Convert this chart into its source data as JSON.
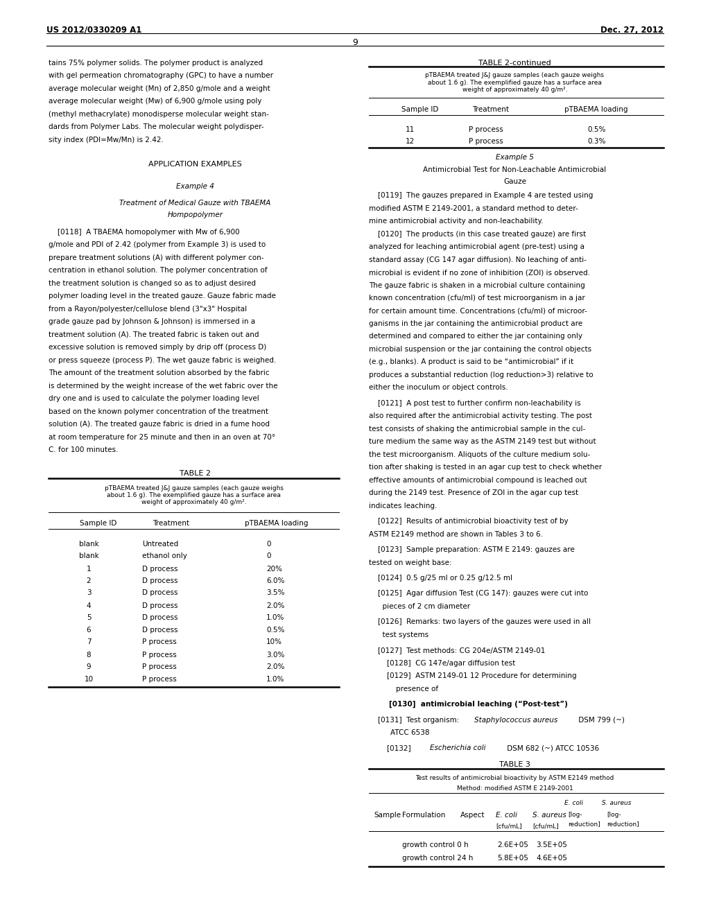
{
  "bg_color": "#ffffff",
  "page_width": 10.24,
  "page_height": 13.2,
  "header_left": "US 2012/0330209 A1",
  "header_right": "Dec. 27, 2012",
  "page_number": "9",
  "table2_rows": [
    [
      "blank",
      "Untreated",
      "0"
    ],
    [
      "blank",
      "ethanol only",
      "0"
    ],
    [
      "1",
      "D process",
      "20%"
    ],
    [
      "2",
      "D process",
      "6.0%"
    ],
    [
      "3",
      "D process",
      "3.5%"
    ],
    [
      "4",
      "D process",
      "2.0%"
    ],
    [
      "5",
      "D process",
      "1.0%"
    ],
    [
      "6",
      "D process",
      "0.5%"
    ],
    [
      "7",
      "P process",
      "10%"
    ],
    [
      "8",
      "P process",
      "3.0%"
    ],
    [
      "9",
      "P process",
      "2.0%"
    ],
    [
      "10",
      "P process",
      "1.0%"
    ]
  ],
  "cont_rows": [
    [
      "11",
      "P process",
      "0.5%"
    ],
    [
      "12",
      "P process",
      "0.3%"
    ]
  ],
  "table3_data": [
    [
      "",
      "growth control 0 h",
      "",
      "2.6E+05",
      "3.5E+05",
      "",
      ""
    ],
    [
      "",
      "growth control 24 h",
      "",
      "5.8E+05",
      "4.6E+05",
      "",
      ""
    ]
  ]
}
